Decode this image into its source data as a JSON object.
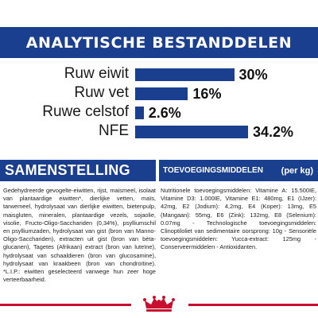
{
  "analysis": {
    "title": "ANALYTISCHE BESTANDDELEN",
    "rows": [
      {
        "label": "Ruw eiwit",
        "value_text": "30%",
        "value": 30
      },
      {
        "label": "Ruw vet",
        "value_text": "16%",
        "value": 16
      },
      {
        "label": "Ruwe celstof",
        "value_text": "2.6%",
        "value": 2.6
      },
      {
        "label": "NFE",
        "value_text": "34.2%",
        "value": 34.2
      }
    ],
    "bar_color": "#1b3f8f"
  },
  "composition": {
    "title": "SAMENSTELLING",
    "text": "Gedehydreerde gevogelte-eiwitten, rijst, maismeel, isolaat van plantaardige eiwitten*, dierlijke vetten, maïs, tarwemeel, hydrolysaat van dierlijke eiwitten, bietenpulp, maisgluten, mineralen, plantaardige vezels, sojaolie, visolie, Fructo-Oligo-Sacchariden (0,34%), psylliumschil en psylliumzaden, hydrolysaat van gist (bron van Manno-Oligo-Sacchariden), extracten uit gist (bron van bèta-glucanen), Tagetes (Afrikaan) extract (bron van luteïne), hydrolysaat van schaaldieren (bron van glucosamine), hydrolysaat van kraakbeen (bron van chondroïtine). *L.I.P.: eiwitten geselecteerd vanwege hun zeer hoge verteerbaarheid."
  },
  "additives": {
    "title": "TOEVOEGINGSMIDDELEN",
    "unit": "(per kg)",
    "text": "Nutritionele toevoegingsmiddelen: Vitamine A: 15.500IE, Vitamine D3: 1.000IE, Vitamine E1: 480mg, E1 (IJzer): 42mg, E2 (Jodium): 4,2mg, E4 (Koper): 13mg, E5 (Mangaan): 55mg, E6 (Zink): 132mg, E8 (Selenium): 0.07mg - Technologische toevoegingsmiddelen: Clinoptiloliet van sedimentaire oorsprong: 10g - Sensoriële toevoegingsmiddelen: Yucca-extract: 125mg - Conserveermiddelen - Antioxidanten."
  },
  "colors": {
    "brand_blue": "#1b3f8f",
    "brand_red": "#c8102e"
  },
  "footer": {
    "logo_icon": "royal-canin-crown-logo"
  }
}
